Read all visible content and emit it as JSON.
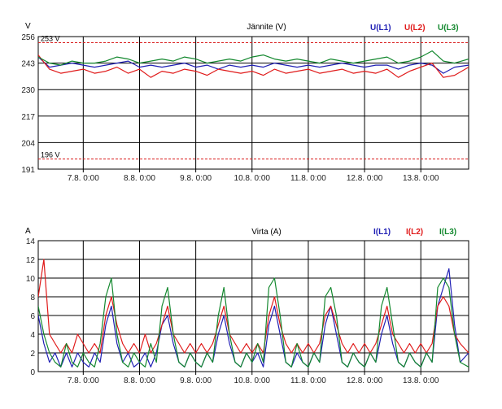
{
  "colors": {
    "L1": "#1f1fb4",
    "L2": "#e01a1a",
    "L3": "#13882e",
    "reference": "#d81b1b",
    "grid": "#000000"
  },
  "chart_data": [
    {
      "type": "line",
      "title": "Jännite (V)",
      "ylabel": "V",
      "ylim": [
        191,
        256
      ],
      "yticks": [
        191,
        204,
        217,
        230,
        243,
        256
      ],
      "xlim": [
        6.2,
        13.85
      ],
      "xticks": [
        7,
        8,
        9,
        10,
        11,
        12,
        13
      ],
      "xtick_labels": [
        "7.8. 0:00",
        "8.8. 0:00",
        "9.8. 0:00",
        "10.8. 0:00",
        "11.8. 0:00",
        "12.8. 0:00",
        "13.8. 0:00"
      ],
      "grid": true,
      "legend_position": "top-right",
      "reference_lines": [
        {
          "value": 253,
          "label": "253 V"
        },
        {
          "value": 196,
          "label": "196 V"
        }
      ],
      "series": [
        {
          "name": "U(L1)",
          "color_key": "L1",
          "x": [
            6.2,
            6.4,
            6.6,
            6.8,
            7.0,
            7.2,
            7.4,
            7.6,
            7.8,
            8.0,
            8.2,
            8.4,
            8.6,
            8.8,
            9.0,
            9.2,
            9.4,
            9.6,
            9.8,
            10.0,
            10.2,
            10.4,
            10.6,
            10.8,
            11.0,
            11.2,
            11.4,
            11.6,
            11.8,
            12.0,
            12.2,
            12.4,
            12.6,
            12.8,
            13.0,
            13.2,
            13.4,
            13.6,
            13.85
          ],
          "y": [
            246,
            241,
            242,
            243,
            242,
            241,
            242,
            243,
            244,
            241,
            242,
            241,
            242,
            243,
            241,
            242,
            240,
            242,
            241,
            242,
            241,
            243,
            242,
            241,
            242,
            241,
            242,
            243,
            242,
            241,
            242,
            242,
            240,
            242,
            243,
            242,
            238,
            241,
            242
          ]
        },
        {
          "name": "U(L2)",
          "color_key": "L2",
          "x": [
            6.2,
            6.4,
            6.6,
            6.8,
            7.0,
            7.2,
            7.4,
            7.6,
            7.8,
            8.0,
            8.2,
            8.4,
            8.6,
            8.8,
            9.0,
            9.2,
            9.4,
            9.6,
            9.8,
            10.0,
            10.2,
            10.4,
            10.6,
            10.8,
            11.0,
            11.2,
            11.4,
            11.6,
            11.8,
            12.0,
            12.2,
            12.4,
            12.6,
            12.8,
            13.0,
            13.2,
            13.4,
            13.6,
            13.85
          ],
          "y": [
            247,
            240,
            238,
            239,
            240,
            238,
            239,
            241,
            238,
            240,
            236,
            239,
            238,
            240,
            239,
            237,
            240,
            239,
            238,
            239,
            237,
            240,
            238,
            239,
            240,
            238,
            239,
            240,
            238,
            239,
            238,
            240,
            236,
            239,
            241,
            243,
            236,
            237,
            241
          ]
        },
        {
          "name": "U(L3)",
          "color_key": "L3",
          "x": [
            6.2,
            6.4,
            6.6,
            6.8,
            7.0,
            7.2,
            7.4,
            7.6,
            7.8,
            8.0,
            8.2,
            8.4,
            8.6,
            8.8,
            9.0,
            9.2,
            9.4,
            9.6,
            9.8,
            10.0,
            10.2,
            10.4,
            10.6,
            10.8,
            11.0,
            11.2,
            11.4,
            11.6,
            11.8,
            12.0,
            12.2,
            12.4,
            12.6,
            12.8,
            13.0,
            13.2,
            13.4,
            13.6,
            13.85
          ],
          "y": [
            246,
            243,
            242,
            244,
            243,
            243,
            244,
            246,
            245,
            243,
            244,
            245,
            244,
            246,
            245,
            243,
            244,
            245,
            244,
            246,
            247,
            245,
            244,
            245,
            244,
            243,
            245,
            244,
            243,
            244,
            245,
            246,
            243,
            244,
            246,
            249,
            244,
            243,
            245
          ]
        }
      ]
    },
    {
      "type": "line",
      "title": "Virta (A)",
      "ylabel": "A",
      "ylim": [
        0,
        14
      ],
      "yticks": [
        0,
        2,
        4,
        6,
        8,
        10,
        12,
        14
      ],
      "xlim": [
        6.2,
        13.85
      ],
      "xticks": [
        7,
        8,
        9,
        10,
        11,
        12,
        13
      ],
      "xtick_labels": [
        "7.8. 0:00",
        "8.8. 0:00",
        "9.8. 0:00",
        "10.8. 0:00",
        "11.8. 0:00",
        "12.8. 0:00",
        "13.8. 0:00"
      ],
      "grid": true,
      "legend_position": "top-right",
      "series": [
        {
          "name": "I(L1)",
          "color_key": "L1",
          "x": [
            6.2,
            6.3,
            6.4,
            6.5,
            6.6,
            6.7,
            6.8,
            6.9,
            7.0,
            7.1,
            7.2,
            7.3,
            7.4,
            7.5,
            7.6,
            7.7,
            7.8,
            7.9,
            8.0,
            8.1,
            8.2,
            8.3,
            8.4,
            8.5,
            8.6,
            8.7,
            8.8,
            8.9,
            9.0,
            9.1,
            9.2,
            9.3,
            9.4,
            9.5,
            9.6,
            9.7,
            9.8,
            9.9,
            10.0,
            10.1,
            10.2,
            10.3,
            10.4,
            10.5,
            10.6,
            10.7,
            10.8,
            10.9,
            11.0,
            11.1,
            11.2,
            11.3,
            11.4,
            11.5,
            11.6,
            11.7,
            11.8,
            11.9,
            12.0,
            12.1,
            12.2,
            12.3,
            12.4,
            12.5,
            12.6,
            12.7,
            12.8,
            12.9,
            13.0,
            13.1,
            13.2,
            13.3,
            13.4,
            13.5,
            13.6,
            13.7,
            13.85
          ],
          "y": [
            6,
            3,
            1,
            2,
            0.5,
            2,
            0.5,
            2,
            1,
            0.5,
            2,
            1,
            5,
            7,
            3,
            1,
            2,
            0.5,
            1,
            2,
            0.5,
            2,
            5,
            6,
            3,
            1,
            0.5,
            2,
            1,
            0.5,
            2,
            1,
            4,
            6,
            3,
            1,
            0.5,
            2,
            1,
            2,
            0.5,
            5,
            7,
            4,
            1,
            0.5,
            2,
            1,
            0.5,
            2,
            1,
            5,
            7,
            4,
            1,
            0.5,
            2,
            1,
            0.5,
            2,
            1,
            4,
            6,
            3,
            1,
            0.5,
            2,
            1,
            0.5,
            2,
            1,
            7,
            9,
            11,
            5,
            1,
            2
          ]
        },
        {
          "name": "I(L2)",
          "color_key": "L2",
          "x": [
            6.2,
            6.3,
            6.4,
            6.5,
            6.6,
            6.7,
            6.8,
            6.9,
            7.0,
            7.1,
            7.2,
            7.3,
            7.4,
            7.5,
            7.6,
            7.7,
            7.8,
            7.9,
            8.0,
            8.1,
            8.2,
            8.3,
            8.4,
            8.5,
            8.6,
            8.7,
            8.8,
            8.9,
            9.0,
            9.1,
            9.2,
            9.3,
            9.4,
            9.5,
            9.6,
            9.7,
            9.8,
            9.9,
            10.0,
            10.1,
            10.2,
            10.3,
            10.4,
            10.5,
            10.6,
            10.7,
            10.8,
            10.9,
            11.0,
            11.1,
            11.2,
            11.3,
            11.4,
            11.5,
            11.6,
            11.7,
            11.8,
            11.9,
            12.0,
            12.1,
            12.2,
            12.3,
            12.4,
            12.5,
            12.6,
            12.7,
            12.8,
            12.9,
            13.0,
            13.1,
            13.2,
            13.3,
            13.4,
            13.5,
            13.6,
            13.7,
            13.85
          ],
          "y": [
            8,
            12,
            4,
            3,
            2,
            3,
            2,
            4,
            3,
            2,
            3,
            2,
            6,
            8,
            5,
            3,
            2,
            3,
            2,
            4,
            2,
            3,
            5,
            7,
            4,
            3,
            2,
            3,
            2,
            3,
            2,
            3,
            5,
            7,
            4,
            3,
            2,
            3,
            2,
            3,
            2,
            6,
            8,
            5,
            3,
            2,
            3,
            2,
            3,
            2,
            3,
            6,
            7,
            5,
            3,
            2,
            3,
            2,
            3,
            2,
            3,
            5,
            7,
            4,
            3,
            2,
            3,
            2,
            3,
            2,
            3,
            7,
            8,
            7,
            4,
            3,
            2
          ]
        },
        {
          "name": "I(L3)",
          "color_key": "L3",
          "x": [
            6.2,
            6.3,
            6.4,
            6.5,
            6.6,
            6.7,
            6.8,
            6.9,
            7.0,
            7.1,
            7.2,
            7.3,
            7.4,
            7.5,
            7.6,
            7.7,
            7.8,
            7.9,
            8.0,
            8.1,
            8.2,
            8.3,
            8.4,
            8.5,
            8.6,
            8.7,
            8.8,
            8.9,
            9.0,
            9.1,
            9.2,
            9.3,
            9.4,
            9.5,
            9.6,
            9.7,
            9.8,
            9.9,
            10.0,
            10.1,
            10.2,
            10.3,
            10.4,
            10.5,
            10.6,
            10.7,
            10.8,
            10.9,
            11.0,
            11.1,
            11.2,
            11.3,
            11.4,
            11.5,
            11.6,
            11.7,
            11.8,
            11.9,
            12.0,
            12.1,
            12.2,
            12.3,
            12.4,
            12.5,
            12.6,
            12.7,
            12.8,
            12.9,
            13.0,
            13.1,
            13.2,
            13.3,
            13.4,
            13.5,
            13.6,
            13.7,
            13.85
          ],
          "y": [
            7,
            4,
            2,
            1,
            0.5,
            3,
            1,
            0.5,
            2,
            1,
            0.5,
            3,
            8,
            10,
            4,
            1,
            0.5,
            2,
            1,
            0.5,
            3,
            1,
            7,
            9,
            4,
            1,
            0.5,
            2,
            1,
            0.5,
            2,
            1,
            6,
            9,
            4,
            1,
            0.5,
            2,
            1,
            3,
            1,
            9,
            10,
            6,
            1,
            0.5,
            3,
            1,
            0.5,
            2,
            1,
            8,
            9,
            6,
            1,
            0.5,
            2,
            1,
            0.5,
            2,
            1,
            7,
            9,
            5,
            1,
            0.5,
            2,
            1,
            0.5,
            2,
            1,
            9,
            10,
            9,
            4,
            1,
            0.5
          ]
        }
      ]
    }
  ]
}
